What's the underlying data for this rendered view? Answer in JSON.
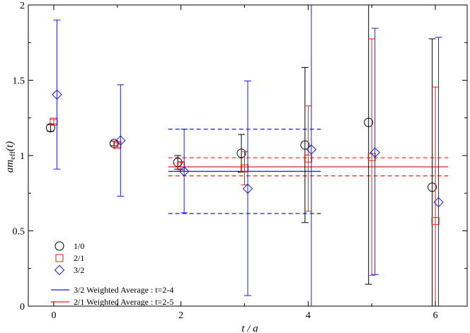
{
  "chart_data": {
    "type": "scatter",
    "title": "",
    "xlabel": "t / a",
    "ylabel": "am_eff(t)",
    "ylabel_main": "am",
    "ylabel_sub": "eff",
    "ylabel_tail": "(t)",
    "xlim": [
      -0.4,
      6.5
    ],
    "ylim": [
      0,
      2
    ],
    "x_ticks": [
      0,
      2,
      4,
      6
    ],
    "y_ticks": [
      0,
      0.5,
      1,
      1.5,
      2
    ],
    "x_tick_labels": [
      "0",
      "2",
      "4",
      "6"
    ],
    "y_tick_labels": [
      "0",
      "0.5",
      "1",
      "1.5",
      "2"
    ],
    "grid": false,
    "legend_position": "bottom-left",
    "series": [
      {
        "name": "1/0",
        "marker": "circle",
        "color": "#000000",
        "points": [
          {
            "x": -0.05,
            "y": 1.185,
            "lo": 1.16,
            "hi": 1.205
          },
          {
            "x": 0.95,
            "y": 1.08,
            "lo": 1.065,
            "hi": 1.095
          },
          {
            "x": 1.95,
            "y": 0.955,
            "lo": 0.91,
            "hi": 1.0
          },
          {
            "x": 2.95,
            "y": 1.015,
            "lo": 0.89,
            "hi": 1.14
          },
          {
            "x": 3.95,
            "y": 1.07,
            "lo": 0.555,
            "hi": 1.585
          },
          {
            "x": 4.95,
            "y": 1.22,
            "lo": 0.145,
            "hi": 2.3
          },
          {
            "x": 5.95,
            "y": 0.79,
            "lo": -0.2,
            "hi": 1.775
          }
        ]
      },
      {
        "name": "2/1",
        "marker": "square",
        "color": "#e8201a",
        "points": [
          {
            "x": 0.0,
            "y": 1.225,
            "lo": 1.21,
            "hi": 1.24
          },
          {
            "x": 1.0,
            "y": 1.07,
            "lo": 1.055,
            "hi": 1.085
          },
          {
            "x": 2.0,
            "y": 0.93,
            "lo": 0.905,
            "hi": 0.96
          },
          {
            "x": 3.0,
            "y": 0.915,
            "lo": 0.805,
            "hi": 1.025
          },
          {
            "x": 4.0,
            "y": 0.98,
            "lo": 0.63,
            "hi": 1.33
          },
          {
            "x": 5.0,
            "y": 0.99,
            "lo": 0.205,
            "hi": 1.775
          },
          {
            "x": 6.0,
            "y": 0.565,
            "lo": -0.3,
            "hi": 1.455
          }
        ]
      },
      {
        "name": "3/2",
        "marker": "diamond",
        "color": "#1c1cd6",
        "points": [
          {
            "x": 0.05,
            "y": 1.405,
            "lo": 0.91,
            "hi": 1.9
          },
          {
            "x": 1.05,
            "y": 1.1,
            "lo": 0.73,
            "hi": 1.47
          },
          {
            "x": 2.05,
            "y": 0.895,
            "lo": 0.62,
            "hi": 1.175
          },
          {
            "x": 3.05,
            "y": 0.78,
            "lo": 0.07,
            "hi": 1.495
          },
          {
            "x": 4.05,
            "y": 1.04,
            "lo": -0.3,
            "hi": 2.3
          },
          {
            "x": 5.05,
            "y": 1.02,
            "lo": 0.21,
            "hi": 1.845
          },
          {
            "x": 6.05,
            "y": 0.69,
            "lo": -0.3,
            "hi": 1.785
          }
        ]
      }
    ],
    "averages": [
      {
        "name": "3/2 Weighted Average : t=2-4",
        "color": "#1c1cd6",
        "x_range": [
          1.8,
          4.2
        ],
        "value": 0.895,
        "band": [
          0.615,
          1.175
        ]
      },
      {
        "name": "2/1 Weighted Average : t=2-5",
        "color": "#e8201a",
        "x_range": [
          1.8,
          6.2
        ],
        "value": 0.925,
        "band": [
          0.865,
          0.985
        ]
      }
    ]
  }
}
